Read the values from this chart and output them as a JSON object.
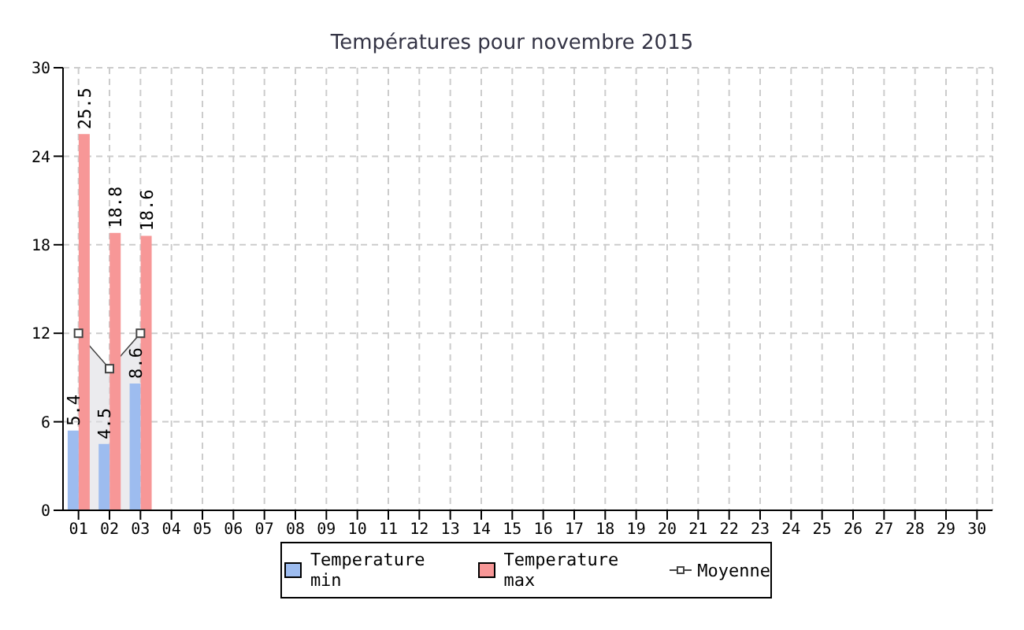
{
  "chart_data": {
    "type": "bar",
    "title": "Températures pour novembre 2015",
    "categories": [
      "01",
      "02",
      "03",
      "04",
      "05",
      "06",
      "07",
      "08",
      "09",
      "10",
      "11",
      "12",
      "13",
      "14",
      "15",
      "16",
      "17",
      "18",
      "19",
      "20",
      "21",
      "22",
      "23",
      "24",
      "25",
      "26",
      "27",
      "28",
      "29",
      "30"
    ],
    "series": [
      {
        "name": "Temperature min",
        "color": "#9dbcef",
        "values": [
          5.4,
          4.5,
          8.6,
          null,
          null,
          null,
          null,
          null,
          null,
          null,
          null,
          null,
          null,
          null,
          null,
          null,
          null,
          null,
          null,
          null,
          null,
          null,
          null,
          null,
          null,
          null,
          null,
          null,
          null,
          null
        ],
        "value_labels": [
          "5.4",
          "4.5",
          "8.6",
          null,
          null,
          null,
          null,
          null,
          null,
          null,
          null,
          null,
          null,
          null,
          null,
          null,
          null,
          null,
          null,
          null,
          null,
          null,
          null,
          null,
          null,
          null,
          null,
          null,
          null,
          null
        ]
      },
      {
        "name": "Temperature max",
        "color": "#f79797",
        "values": [
          25.5,
          18.8,
          18.6,
          null,
          null,
          null,
          null,
          null,
          null,
          null,
          null,
          null,
          null,
          null,
          null,
          null,
          null,
          null,
          null,
          null,
          null,
          null,
          null,
          null,
          null,
          null,
          null,
          null,
          null,
          null
        ],
        "value_labels": [
          "25.5",
          "18.8",
          "18.6",
          null,
          null,
          null,
          null,
          null,
          null,
          null,
          null,
          null,
          null,
          null,
          null,
          null,
          null,
          null,
          null,
          null,
          null,
          null,
          null,
          null,
          null,
          null,
          null,
          null,
          null,
          null
        ]
      },
      {
        "name": "Moyenne",
        "type": "area",
        "color": "#444444",
        "marker": "square",
        "values": [
          12,
          9.6,
          12,
          null,
          null,
          null,
          null,
          null,
          null,
          null,
          null,
          null,
          null,
          null,
          null,
          null,
          null,
          null,
          null,
          null,
          null,
          null,
          null,
          null,
          null,
          null,
          null,
          null,
          null,
          null
        ]
      }
    ],
    "ylim": [
      0,
      30
    ],
    "yticks": [
      0,
      6,
      12,
      18,
      24,
      30
    ],
    "grid": true,
    "line_style": "dashed",
    "legend": "bottom"
  }
}
